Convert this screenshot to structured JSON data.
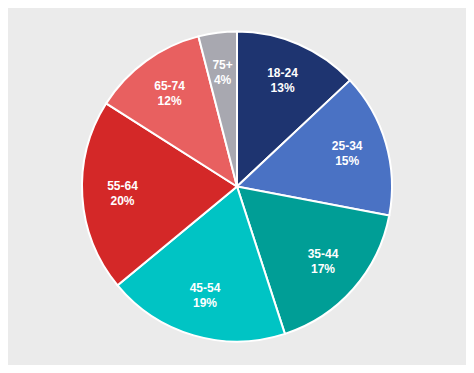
{
  "chart_data": {
    "type": "pie",
    "categories": [
      "18-24",
      "25-34",
      "35-44",
      "45-54",
      "55-64",
      "65-74",
      "75+"
    ],
    "values": [
      13,
      15,
      17,
      19,
      20,
      12,
      4
    ],
    "value_labels": [
      "13%",
      "15%",
      "17%",
      "19%",
      "20%",
      "12%",
      "4%"
    ],
    "colors": [
      "#1e3470",
      "#4a72c4",
      "#009e96",
      "#00c4c4",
      "#d42828",
      "#e86060",
      "#a8a8b0"
    ],
    "data_labels": true
  }
}
